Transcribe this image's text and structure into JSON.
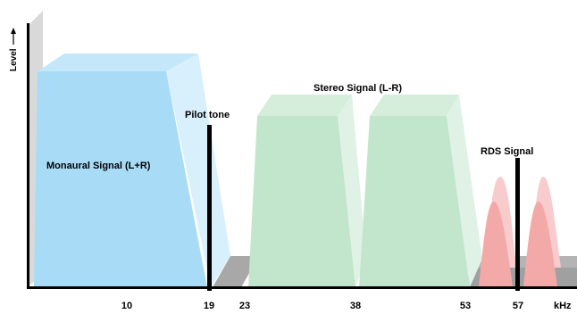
{
  "axis": {
    "y_label": "Level",
    "x_unit": "kHz",
    "ticks": [
      "10",
      "19",
      "23",
      "38",
      "53",
      "57"
    ]
  },
  "labels": {
    "mono": "Monaural Signal (L+R)",
    "pilot": "Pilot tone",
    "stereo": "Stereo Signal (L-R)",
    "rds": "RDS Signal"
  },
  "colors": {
    "mono_face": "#a8dcf6",
    "mono_side": "#d8f0fc",
    "stereo_face": "#c2e6cc",
    "stereo_side": "#e0f2e5",
    "rds": "#f4a9a9",
    "floor": "#a8a8a8",
    "wall": "#d9d9d9",
    "marker": "#000000"
  }
}
